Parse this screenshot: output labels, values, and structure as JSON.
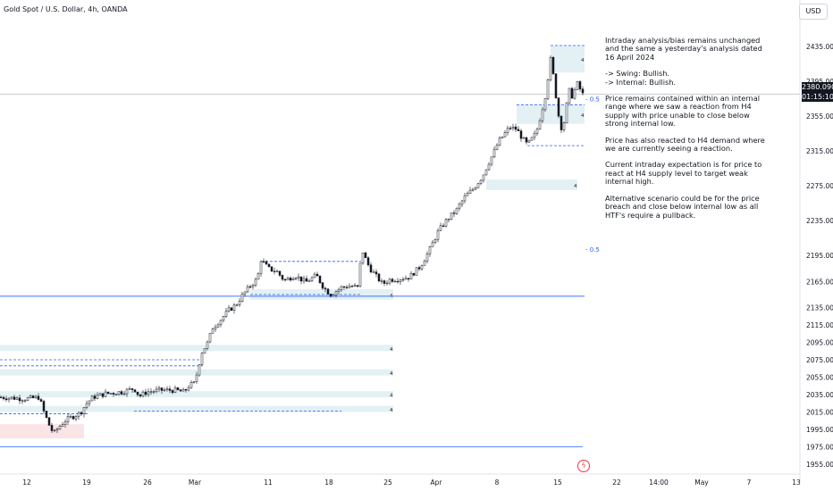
{
  "header": {
    "symbol_title": "Gold Spot / U.S. Dollar, 4h, OANDA",
    "currency": "USD"
  },
  "price_tag": {
    "price": "2380.090",
    "countdown": "01:15:10"
  },
  "notes": [
    "Intraday analysis/bias remains unchanged and the same a yesterday's analysis dated 16 April 2024",
    "-> Swing:  Bullish.",
    "-> Internal:  Bullish.",
    "Price remains contained within an internal range where we saw a reaction from H4 supply with price unable to close below strong internal low.",
    "Price has also reacted to H4 demand where we are currently seeing a reaction.",
    "Current intraday expectation is for price to react at H4 supply level to target weak internal high.",
    "Alternative scenario could be for the price breach and close below internal low as all HTF's require a pullback."
  ],
  "colors": {
    "up": "#131722",
    "down": "#131722",
    "zone_blue": "#e3f0f4",
    "zone_red": "#fbe4e6",
    "dash_blue": "#2962ff",
    "line_blue": "#2962ff",
    "grid": "#f0f3fa",
    "axis_text": "#131722"
  },
  "icons": {
    "alert": "lightning-icon"
  },
  "chart_data": {
    "type": "candlestick",
    "title": "Gold Spot / U.S. Dollar, 4h, OANDA",
    "xlabel": "",
    "ylabel": "",
    "ylim": [
      1950,
      2450
    ],
    "y_ticks": [
      "1955.000",
      "1975.000",
      "1995.000",
      "2015.000",
      "2035.000",
      "2055.000",
      "2075.000",
      "2095.000",
      "2115.000",
      "2135.000",
      "2165.000",
      "2195.000",
      "2235.000",
      "2275.000",
      "2315.000",
      "2355.000",
      "2395.000",
      "2435.000"
    ],
    "x_ticks": [
      "12",
      "19",
      "26",
      "Mar",
      "11",
      "18",
      "25",
      "Apr",
      "8",
      "15",
      "22",
      "14:00",
      "May",
      "7",
      "13"
    ],
    "path": [
      [
        0,
        2032
      ],
      [
        16,
        2031
      ],
      [
        30,
        2030
      ],
      [
        44,
        2032
      ],
      [
        48,
        2018
      ],
      [
        55,
        2000
      ],
      [
        60,
        1990
      ],
      [
        66,
        1998
      ],
      [
        74,
        2006
      ],
      [
        82,
        2010
      ],
      [
        90,
        2014
      ],
      [
        96,
        2024
      ],
      [
        104,
        2032
      ],
      [
        118,
        2036
      ],
      [
        136,
        2038
      ],
      [
        150,
        2042
      ],
      [
        156,
        2033
      ],
      [
        164,
        2038
      ],
      [
        180,
        2040
      ],
      [
        196,
        2040
      ],
      [
        206,
        2038
      ],
      [
        212,
        2046
      ],
      [
        218,
        2048
      ],
      [
        222,
        2068
      ],
      [
        226,
        2084
      ],
      [
        232,
        2094
      ],
      [
        238,
        2112
      ],
      [
        246,
        2120
      ],
      [
        256,
        2132
      ],
      [
        264,
        2138
      ],
      [
        272,
        2150
      ],
      [
        280,
        2160
      ],
      [
        288,
        2168
      ],
      [
        292,
        2190
      ],
      [
        300,
        2180
      ],
      [
        310,
        2176
      ],
      [
        318,
        2166
      ],
      [
        330,
        2172
      ],
      [
        342,
        2164
      ],
      [
        354,
        2172
      ],
      [
        362,
        2158
      ],
      [
        370,
        2150
      ],
      [
        382,
        2158
      ],
      [
        392,
        2160
      ],
      [
        400,
        2158
      ],
      [
        405,
        2202
      ],
      [
        410,
        2188
      ],
      [
        414,
        2180
      ],
      [
        420,
        2172
      ],
      [
        428,
        2162
      ],
      [
        436,
        2167
      ],
      [
        446,
        2168
      ],
      [
        458,
        2170
      ],
      [
        470,
        2182
      ],
      [
        480,
        2200
      ],
      [
        490,
        2222
      ],
      [
        500,
        2236
      ],
      [
        510,
        2246
      ],
      [
        520,
        2262
      ],
      [
        530,
        2272
      ],
      [
        540,
        2286
      ],
      [
        546,
        2300
      ],
      [
        552,
        2312
      ],
      [
        558,
        2326
      ],
      [
        564,
        2334
      ],
      [
        570,
        2342
      ],
      [
        578,
        2340
      ],
      [
        584,
        2330
      ],
      [
        590,
        2322
      ],
      [
        596,
        2330
      ],
      [
        600,
        2336
      ],
      [
        606,
        2360
      ],
      [
        610,
        2378
      ],
      [
        616,
        2420
      ],
      [
        620,
        2396
      ],
      [
        624,
        2360
      ],
      [
        628,
        2342
      ],
      [
        632,
        2350
      ],
      [
        636,
        2386
      ],
      [
        640,
        2378
      ],
      [
        646,
        2392
      ],
      [
        652,
        2380
      ]
    ],
    "zones": [
      {
        "type": "supply",
        "x0": 616,
        "x1": 654,
        "y0": 2405,
        "y1": 2436,
        "label": "4"
      },
      {
        "type": "supply",
        "x0": 578,
        "x1": 654,
        "y0": 2346,
        "y1": 2368,
        "label": "4"
      },
      {
        "type": "demand",
        "x0": 544,
        "x1": 646,
        "y0": 2270,
        "y1": 2282,
        "label": "4"
      },
      {
        "type": "demand",
        "x0": 0,
        "x1": 440,
        "y0": 2085,
        "y1": 2092,
        "label": "4"
      },
      {
        "type": "demand",
        "x0": 0,
        "x1": 440,
        "y0": 2057,
        "y1": 2064,
        "label": "4"
      },
      {
        "type": "demand",
        "x0": 0,
        "x1": 440,
        "y0": 2032,
        "y1": 2039,
        "label": "4"
      },
      {
        "type": "demand",
        "x0": 0,
        "x1": 440,
        "y0": 2015,
        "y1": 2022,
        "label": "4"
      },
      {
        "type": "demand",
        "x0": 0,
        "x1": 94,
        "y0": 1991,
        "y1": 1998,
        "label": ""
      },
      {
        "type": "demand",
        "x0": 280,
        "x1": 440,
        "y0": 2144,
        "y1": 2156,
        "label": "4"
      }
    ],
    "levels": [
      {
        "style": "solid",
        "color": "line_blue",
        "x0": 0,
        "x1": 654,
        "y": 2148
      },
      {
        "style": "solid",
        "color": "line_blue",
        "x0": 0,
        "x1": 652,
        "y": 1975
      },
      {
        "style": "solid",
        "color": "grid",
        "x0": 0,
        "x1": 895,
        "y": 2380
      },
      {
        "style": "dashed",
        "color": "dash_blue",
        "x0": 616,
        "x1": 654,
        "y": 2436
      },
      {
        "style": "dashed",
        "color": "dash_blue",
        "x0": 578,
        "x1": 654,
        "y": 2368
      },
      {
        "style": "dashed",
        "color": "dash_blue",
        "x0": 590,
        "x1": 654,
        "y": 2321
      },
      {
        "style": "dashed",
        "color": "dash_blue",
        "x0": 292,
        "x1": 404,
        "y": 2188
      },
      {
        "style": "dashed",
        "color": "dash_blue",
        "x0": 280,
        "x1": 404,
        "y": 2150
      },
      {
        "style": "dashed",
        "color": "dash_blue",
        "x0": 0,
        "x1": 100,
        "y": 2013
      },
      {
        "style": "dashed",
        "color": "dash_blue",
        "x0": 150,
        "x1": 382,
        "y": 2016
      },
      {
        "style": "dashed",
        "color": "dash_blue",
        "x0": 0,
        "x1": 226,
        "y": 2075
      },
      {
        "style": "dashed",
        "color": "dash_blue",
        "x0": 0,
        "x1": 226,
        "y": 2068
      }
    ],
    "fib_labels": [
      {
        "text": "0.5",
        "x": 655,
        "y": 2375
      },
      {
        "text": "0.5",
        "x": 655,
        "y": 2202
      }
    ]
  }
}
